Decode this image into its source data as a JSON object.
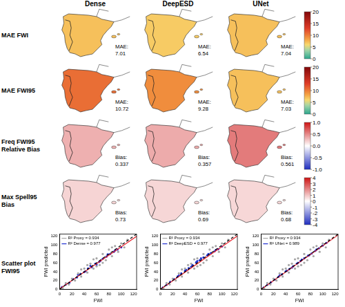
{
  "columns": [
    "Dense",
    "DeepESD",
    "UNet"
  ],
  "rows": [
    {
      "label": "MAE FWI",
      "colorbar": {
        "range": [
          0,
          20
        ],
        "ticks": [
          0,
          5,
          10,
          15,
          20
        ]
      },
      "panels": [
        {
          "stat_label": "MAE:",
          "stat": 7.01
        },
        {
          "stat_label": "MAE:",
          "stat": 6.54
        },
        {
          "stat_label": "MAE:",
          "stat": 7.04
        }
      ]
    },
    {
      "label": "MAE FWI95",
      "colorbar": {
        "range": [
          0,
          20
        ],
        "ticks": [
          0,
          5,
          10,
          15,
          20
        ]
      },
      "panels": [
        {
          "stat_label": "MAE:",
          "stat": 10.72
        },
        {
          "stat_label": "MAE:",
          "stat": 9.28
        },
        {
          "stat_label": "MAE:",
          "stat": 7.03
        }
      ]
    },
    {
      "label": "Freq FWI95 Relative Bias",
      "colorbar": {
        "range": [
          -1,
          1
        ],
        "ticks": [
          {
            "value": -1,
            "label": "-1.0"
          },
          -0.5,
          {
            "value": 0,
            "label": "0.0"
          },
          0.5,
          {
            "value": 1,
            "label": "1.0"
          }
        ]
      },
      "panels": [
        {
          "stat_label": "Bias:",
          "stat": 0.337
        },
        {
          "stat_label": "Bias:",
          "stat": 0.357
        },
        {
          "stat_label": "Bias:",
          "stat": 0.561
        }
      ]
    },
    {
      "label": "Max Spell95 Bias",
      "colorbar": {
        "range": [
          -4,
          4
        ],
        "ticks": [
          -4,
          -3,
          -2,
          -1,
          0,
          1,
          2,
          3,
          4
        ]
      },
      "panels": [
        {
          "stat_label": "Bias:",
          "stat": 0.73
        },
        {
          "stat_label": "Bias:",
          "stat": 0.69
        },
        {
          "stat_label": "Bias:",
          "stat": 0.68
        }
      ]
    }
  ],
  "scatter_row_label": "Scatter plot FWI95",
  "chart_data": [
    {
      "type": "scatter",
      "x_label": "FWI",
      "y_label": "FWI predicted",
      "xlim": [
        0,
        125
      ],
      "ylim": [
        0,
        125
      ],
      "xticks": [
        0,
        20,
        40,
        60,
        80,
        100,
        120
      ],
      "yticks": [
        0,
        20,
        40,
        60,
        80,
        100,
        120
      ],
      "grid": false,
      "legend": "upper left",
      "series": [
        {
          "name": "R² Proxy = 0.934",
          "color": "#a6a6a6",
          "marker": "circle",
          "x": [
            5,
            10,
            15,
            20,
            25,
            30,
            35,
            40,
            45,
            50,
            55,
            60,
            65,
            70,
            75,
            80,
            85,
            90,
            95,
            100,
            105,
            110,
            35,
            55,
            70,
            85,
            60,
            45
          ],
          "values": [
            3,
            14,
            11,
            24,
            20,
            36,
            29,
            47,
            38,
            58,
            47,
            70,
            55,
            80,
            66,
            90,
            75,
            98,
            85,
            104,
            95,
            112,
            45,
            68,
            60,
            95,
            52,
            55
          ]
        },
        {
          "name": "R² Dense = 0.977",
          "color": "#1f2fd0",
          "marker": "circle",
          "x": [
            4,
            10,
            16,
            22,
            28,
            34,
            40,
            46,
            52,
            58,
            64,
            70,
            76,
            82,
            88,
            94,
            100,
            30,
            50,
            66,
            78,
            90,
            42,
            60
          ],
          "values": [
            5,
            11,
            15,
            23,
            27,
            35,
            39,
            47,
            50,
            58,
            62,
            69,
            74,
            80,
            85,
            90,
            95,
            33,
            53,
            64,
            79,
            88,
            41,
            56
          ]
        },
        {
          "type": "line",
          "color": "#000000",
          "line_style": "dashed",
          "x": [
            0,
            125
          ],
          "values": [
            0,
            125
          ]
        },
        {
          "type": "line",
          "color": "#e8202a",
          "line_style": "solid",
          "x": [
            0,
            125
          ],
          "values": [
            1,
            120
          ]
        }
      ]
    },
    {
      "type": "scatter",
      "x_label": "FWI",
      "y_label": "FWI predicted",
      "xlim": [
        0,
        125
      ],
      "ylim": [
        0,
        125
      ],
      "xticks": [
        0,
        20,
        40,
        60,
        80,
        100,
        120
      ],
      "yticks": [
        0,
        20,
        40,
        60,
        80,
        100,
        120
      ],
      "grid": false,
      "legend": "upper left",
      "series": [
        {
          "name": "R² Proxy = 0.934",
          "color": "#a6a6a6",
          "marker": "circle",
          "x": [
            5,
            10,
            15,
            20,
            25,
            30,
            35,
            40,
            45,
            50,
            55,
            60,
            65,
            70,
            75,
            80,
            85,
            90,
            95,
            100,
            105,
            110,
            35,
            55,
            70,
            85,
            60,
            45
          ],
          "values": [
            3,
            14,
            11,
            24,
            20,
            36,
            29,
            47,
            38,
            58,
            47,
            70,
            55,
            80,
            66,
            90,
            75,
            98,
            85,
            104,
            95,
            112,
            45,
            68,
            60,
            95,
            52,
            55
          ]
        },
        {
          "name": "R² DeepESD = 0.977",
          "color": "#1f2fd0",
          "marker": "circle",
          "x": [
            4,
            10,
            16,
            22,
            28,
            34,
            40,
            46,
            52,
            58,
            64,
            70,
            76,
            82,
            88,
            94,
            100,
            30,
            50,
            66,
            78,
            90,
            42,
            60
          ],
          "values": [
            4,
            10,
            17,
            23,
            29,
            36,
            42,
            48,
            55,
            61,
            66,
            72,
            77,
            82,
            86,
            91,
            97,
            31,
            51,
            70,
            80,
            89,
            44,
            64
          ]
        },
        {
          "type": "line",
          "color": "#000000",
          "line_style": "dashed",
          "x": [
            0,
            125
          ],
          "values": [
            0,
            125
          ]
        },
        {
          "type": "line",
          "color": "#e8202a",
          "line_style": "solid",
          "x": [
            0,
            125
          ],
          "values": [
            0,
            121
          ]
        }
      ]
    },
    {
      "type": "scatter",
      "x_label": "FWI",
      "y_label": "FWI predicted",
      "xlim": [
        0,
        125
      ],
      "ylim": [
        0,
        125
      ],
      "xticks": [
        0,
        20,
        40,
        60,
        80,
        100,
        120
      ],
      "yticks": [
        0,
        20,
        40,
        60,
        80,
        100,
        120
      ],
      "grid": false,
      "legend": "upper left",
      "series": [
        {
          "name": "R² Proxy = 0.934",
          "color": "#a6a6a6",
          "marker": "circle",
          "x": [
            5,
            10,
            15,
            20,
            25,
            30,
            35,
            40,
            45,
            50,
            55,
            60,
            65,
            70,
            75,
            80,
            85,
            90,
            95,
            100,
            105,
            110,
            35,
            55,
            70,
            85,
            60,
            45
          ],
          "values": [
            3,
            14,
            11,
            24,
            20,
            36,
            29,
            47,
            38,
            58,
            47,
            70,
            55,
            80,
            66,
            90,
            75,
            98,
            85,
            104,
            95,
            112,
            45,
            68,
            60,
            95,
            52,
            55
          ]
        },
        {
          "name": "R² UNet = 0.989",
          "color": "#1f2fd0",
          "marker": "circle",
          "x": [
            4,
            10,
            16,
            22,
            28,
            34,
            40,
            46,
            52,
            58,
            64,
            70,
            76,
            82,
            88,
            94,
            100,
            30,
            50,
            66,
            78,
            90,
            42,
            60,
            106
          ],
          "values": [
            4,
            10,
            16,
            22,
            28,
            34,
            41,
            46,
            52,
            58,
            64,
            70,
            76,
            81,
            87,
            93,
            99,
            31,
            49,
            67,
            77,
            90,
            42,
            60,
            105
          ]
        },
        {
          "type": "line",
          "color": "#000000",
          "line_style": "dashed",
          "x": [
            0,
            125
          ],
          "values": [
            0,
            125
          ]
        },
        {
          "type": "line",
          "color": "#e8202a",
          "line_style": "solid",
          "x": [
            0,
            125
          ],
          "values": [
            0,
            123
          ]
        }
      ]
    }
  ]
}
